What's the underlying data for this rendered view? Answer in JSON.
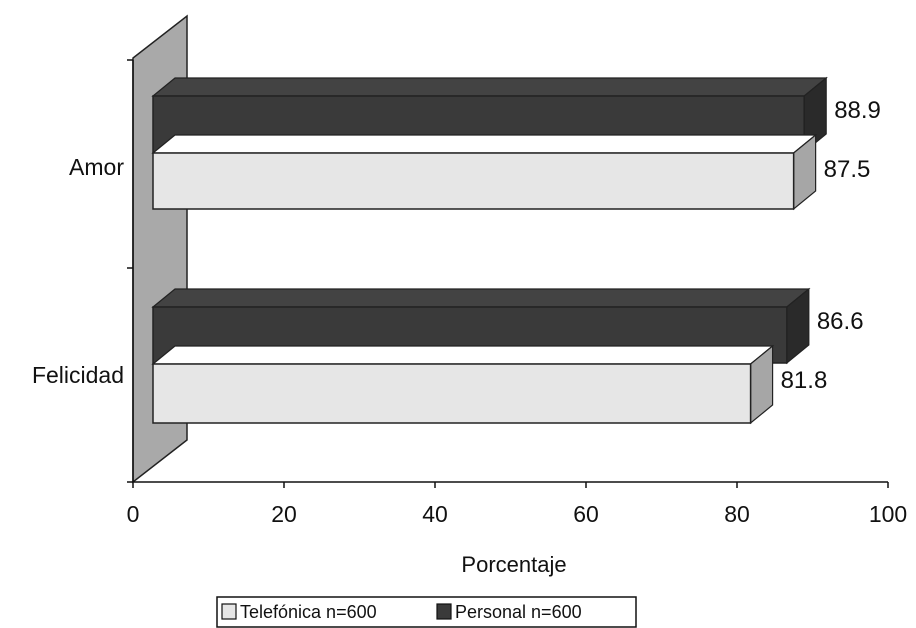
{
  "chart_data": {
    "type": "bar",
    "orientation": "horizontal",
    "style": "3d",
    "categories": [
      "Amor",
      "Felicidad"
    ],
    "series": [
      {
        "name": "Telefónica n=600",
        "values": [
          87.5,
          81.8
        ],
        "color": "#e6e6e6"
      },
      {
        "name": "Personal n=600",
        "values": [
          88.9,
          86.6
        ],
        "color": "#3a3a3a"
      }
    ],
    "xlabel": "Porcentaje",
    "ylabel": "",
    "xlim": [
      0,
      100
    ],
    "xticks": [
      "0",
      "20",
      "40",
      "60",
      "80",
      "100"
    ],
    "data_labels": [
      "87.5",
      "81.8",
      "88.9",
      "86.6"
    ],
    "grid": false,
    "legend": "bottom",
    "wall_color": "#a9a9a9"
  }
}
